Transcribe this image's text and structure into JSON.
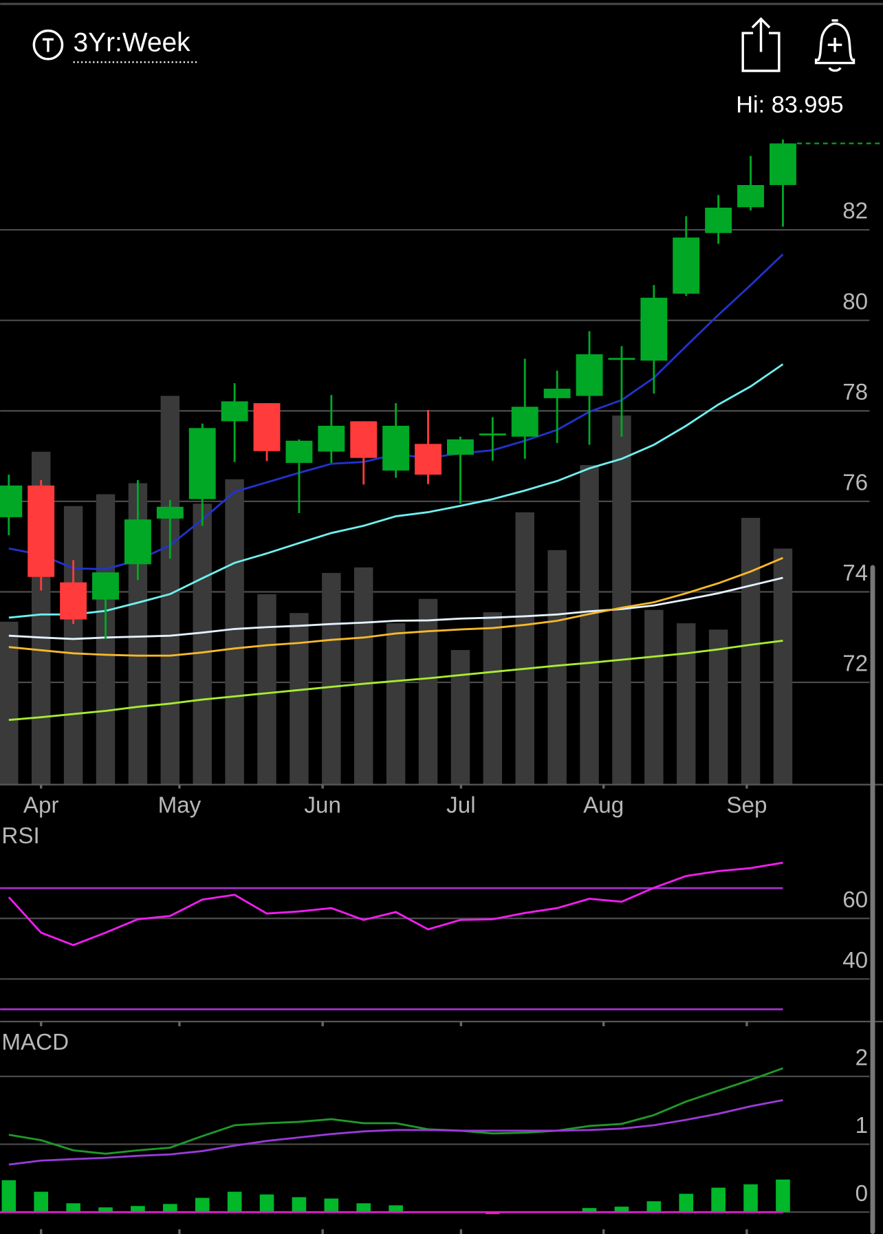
{
  "header": {
    "range": "3Yr:Week",
    "hi": "Hi: 83.995"
  },
  "chart_data": [
    {
      "type": "candlestick",
      "categories": [
        null,
        null,
        null,
        null,
        null,
        null,
        null,
        null,
        null,
        null,
        null,
        null,
        null,
        null,
        null,
        null,
        null,
        null,
        null,
        null,
        null,
        null,
        null,
        null,
        null
      ],
      "xlim": [
        -0.27,
        27.1
      ],
      "xticks": [
        {
          "value": 1.0,
          "label": "Apr"
        },
        {
          "value": 5.29,
          "label": "May"
        },
        {
          "value": 9.73,
          "label": "Jun"
        },
        {
          "value": 14.02,
          "label": "Jul"
        },
        {
          "value": 18.44,
          "label": "Aug"
        },
        {
          "value": 22.88,
          "label": "Sep"
        }
      ],
      "ylim": [
        69.74,
        85.34
      ],
      "yticks": [
        72,
        74,
        76,
        78,
        80,
        82
      ],
      "grid": true,
      "up_color": "#00a826",
      "down_color": "#ff3b3b",
      "open": [
        75.65,
        76.35,
        74.21,
        73.83,
        74.61,
        75.62,
        76.05,
        77.77,
        78.17,
        76.85,
        77.1,
        77.77,
        76.68,
        77.27,
        77.03,
        77.46,
        77.43,
        78.28,
        78.33,
        79.13,
        79.11,
        80.59,
        81.93,
        82.5,
        82.99
      ],
      "high": [
        76.59,
        76.47,
        74.7,
        74.43,
        76.47,
        76.03,
        77.72,
        78.61,
        78.17,
        77.37,
        78.35,
        77.77,
        78.17,
        78.02,
        77.43,
        77.86,
        79.15,
        78.89,
        79.76,
        79.43,
        80.78,
        82.3,
        82.77,
        83.63,
        83.995
      ],
      "low": [
        75.25,
        74.03,
        73.29,
        72.96,
        74.26,
        74.73,
        75.46,
        76.87,
        76.89,
        75.74,
        76.85,
        76.37,
        76.52,
        76.38,
        75.95,
        76.9,
        76.94,
        77.29,
        77.25,
        77.43,
        78.38,
        80.54,
        81.69,
        82.43,
        82.07
      ],
      "close": [
        76.35,
        74.33,
        73.39,
        74.43,
        75.6,
        75.88,
        77.62,
        78.21,
        77.11,
        77.34,
        77.67,
        76.96,
        77.67,
        76.59,
        77.37,
        77.5,
        78.09,
        78.49,
        79.25,
        79.17,
        80.5,
        81.83,
        82.49,
        82.99,
        83.91
      ],
      "volume": {
        "color": "#3a3a3a",
        "lim": [
          0,
          897
        ],
        "values": [
          207,
          423,
          354,
          369,
          383,
          494,
          357,
          388,
          242,
          218,
          269,
          276,
          205,
          236,
          171,
          219,
          346,
          298,
          406,
          469,
          222,
          205,
          197,
          339,
          300
        ]
      },
      "series": [
        {
          "color": "#2233cc",
          "values": [
            74.96,
            74.82,
            74.52,
            74.5,
            74.7,
            75.03,
            75.6,
            76.21,
            76.42,
            76.63,
            76.83,
            76.87,
            77.04,
            76.96,
            77.06,
            77.13,
            77.34,
            77.58,
            77.98,
            78.24,
            78.73,
            79.43,
            80.12,
            80.78,
            81.46
          ]
        },
        {
          "color": "#6ff0f0",
          "values": [
            73.43,
            73.5,
            73.5,
            73.58,
            73.76,
            73.95,
            74.3,
            74.64,
            74.85,
            75.08,
            75.3,
            75.46,
            75.67,
            75.76,
            75.9,
            76.05,
            76.24,
            76.45,
            76.73,
            76.94,
            77.25,
            77.67,
            78.14,
            78.54,
            79.03
          ]
        },
        {
          "color": "#e4f2ff",
          "values": [
            73.03,
            72.99,
            72.96,
            72.99,
            73.01,
            73.03,
            73.1,
            73.18,
            73.22,
            73.25,
            73.29,
            73.32,
            73.36,
            73.37,
            73.41,
            73.43,
            73.46,
            73.5,
            73.57,
            73.62,
            73.7,
            73.83,
            73.97,
            74.14,
            74.31
          ]
        },
        {
          "color": "#f7b92a",
          "values": [
            72.78,
            72.71,
            72.64,
            72.61,
            72.59,
            72.59,
            72.66,
            72.75,
            72.82,
            72.87,
            72.94,
            72.99,
            73.08,
            73.13,
            73.17,
            73.2,
            73.27,
            73.36,
            73.51,
            73.65,
            73.77,
            73.97,
            74.19,
            74.45,
            74.75
          ]
        },
        {
          "color": "#a8ec30",
          "values": [
            71.17,
            71.23,
            71.3,
            71.37,
            71.46,
            71.53,
            71.62,
            71.69,
            71.76,
            71.83,
            71.9,
            71.97,
            72.03,
            72.09,
            72.16,
            72.23,
            72.3,
            72.37,
            72.43,
            72.5,
            72.57,
            72.64,
            72.73,
            72.83,
            72.92
          ]
        }
      ]
    },
    {
      "type": "line",
      "title": "RSI",
      "ylim": [
        25.97,
        90.39
      ],
      "yticks": [
        40,
        60
      ],
      "grid": true,
      "levels": [
        30,
        70
      ],
      "level_color": "#a032c8",
      "series": [
        {
          "color": "#f01ef0",
          "values": [
            67.0,
            55.3,
            51.2,
            55.3,
            59.7,
            60.8,
            66.2,
            67.8,
            61.6,
            62.3,
            63.4,
            59.5,
            62.1,
            56.4,
            59.5,
            59.7,
            61.8,
            63.4,
            66.5,
            65.5,
            70.1,
            74.0,
            75.6,
            76.6,
            78.4
          ]
        }
      ]
    },
    {
      "type": "macd",
      "title": "MACD",
      "ylim": [
        -0.23,
        2.67
      ],
      "yticks": [
        0,
        1,
        2
      ],
      "grid": true,
      "zero_color": "#e020d0",
      "series": [
        {
          "color": "#1f9a2a",
          "values": [
            1.14,
            1.06,
            0.91,
            0.86,
            0.91,
            0.95,
            1.12,
            1.28,
            1.31,
            1.33,
            1.37,
            1.31,
            1.31,
            1.22,
            1.2,
            1.16,
            1.17,
            1.2,
            1.27,
            1.3,
            1.43,
            1.63,
            1.79,
            1.95,
            2.12
          ]
        },
        {
          "color": "#9a3ad8",
          "values": [
            0.7,
            0.76,
            0.78,
            0.8,
            0.83,
            0.85,
            0.9,
            0.98,
            1.05,
            1.1,
            1.15,
            1.19,
            1.21,
            1.21,
            1.2,
            1.2,
            1.2,
            1.2,
            1.21,
            1.23,
            1.28,
            1.36,
            1.45,
            1.56,
            1.65
          ]
        }
      ],
      "histogram": {
        "up_color": "#00b82a",
        "down_color": "#ff1e8c",
        "values": [
          0.47,
          0.3,
          0.13,
          0.07,
          0.09,
          0.12,
          0.21,
          0.3,
          0.26,
          0.22,
          0.2,
          0.13,
          0.1,
          0.01,
          0,
          -0.03,
          0,
          0,
          0.06,
          0.08,
          0.16,
          0.27,
          0.36,
          0.41,
          0.48
        ]
      }
    }
  ]
}
